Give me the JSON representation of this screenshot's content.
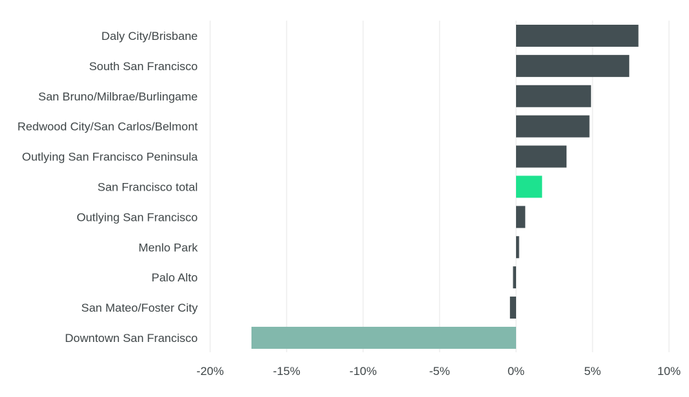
{
  "chart_data": {
    "type": "bar",
    "orientation": "horizontal",
    "title": "",
    "xlabel": "",
    "ylabel": "",
    "categories": [
      "Daly City/Brisbane",
      "South San Francisco",
      "San Bruno/Milbrae/Burlingame",
      "Redwood City/San Carlos/Belmont",
      "Outlying San Francisco Peninsula",
      "San Francisco total",
      "Outlying San Francisco",
      "Menlo Park",
      "Palo Alto",
      "San Mateo/Foster City",
      "Downtown San Francisco"
    ],
    "values": [
      8.0,
      7.4,
      4.9,
      4.8,
      3.3,
      1.7,
      0.6,
      0.2,
      -0.2,
      -0.4,
      -17.3
    ],
    "bar_colors": [
      "#434f53",
      "#434f53",
      "#434f53",
      "#434f53",
      "#434f53",
      "#1de28f",
      "#434f53",
      "#434f53",
      "#434f53",
      "#434f53",
      "#82b8ac"
    ],
    "xlim": [
      -20,
      10
    ],
    "xticks": [
      -20,
      -15,
      -10,
      -5,
      0,
      5,
      10
    ],
    "xtick_labels": [
      "-20%",
      "-15%",
      "-10%",
      "-5%",
      "0%",
      "5%",
      "10%"
    ],
    "grid": "vertical",
    "legend": "none"
  }
}
